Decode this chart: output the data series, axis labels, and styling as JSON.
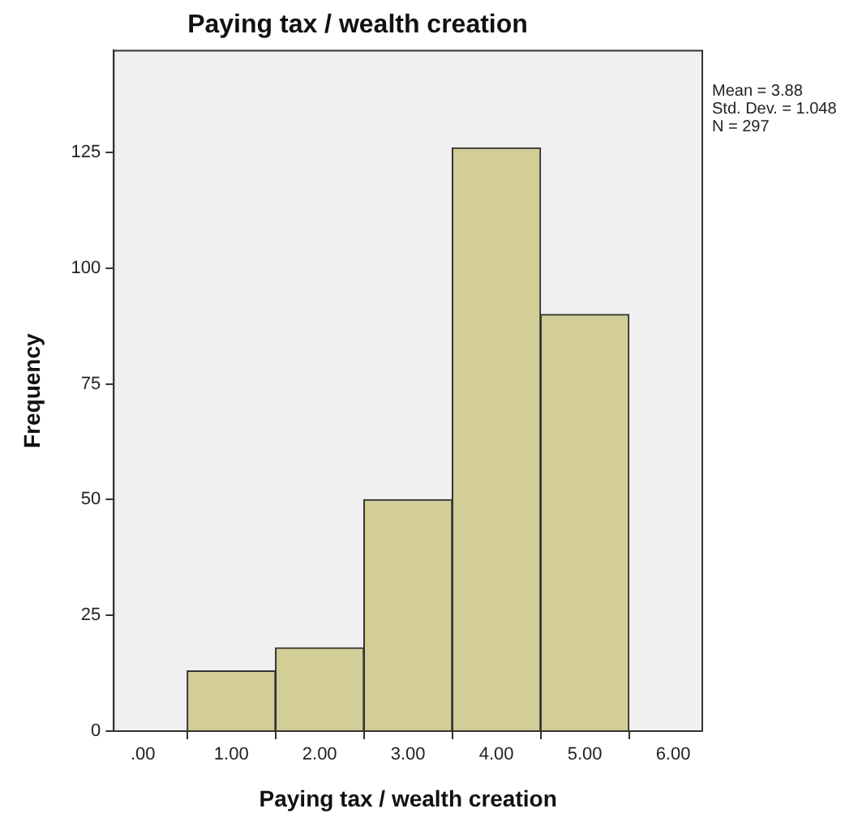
{
  "chart_data": {
    "type": "histogram",
    "title": "Paying tax / wealth creation",
    "xlabel": "Paying tax / wealth creation",
    "ylabel": "Frequency",
    "bins": [
      0.5,
      1.5,
      2.5,
      3.5,
      4.5,
      5.5
    ],
    "values": [
      13,
      18,
      50,
      126,
      90
    ],
    "color": "#d3cd98",
    "xlim": [
      -0.33,
      6.33
    ],
    "xticks": [
      {
        "value": 0,
        "label": ".00"
      },
      {
        "value": 1,
        "label": "1.00"
      },
      {
        "value": 2,
        "label": "2.00"
      },
      {
        "value": 3,
        "label": "3.00"
      },
      {
        "value": 4,
        "label": "4.00"
      },
      {
        "value": 5,
        "label": "5.00"
      },
      {
        "value": 6,
        "label": "6.00"
      }
    ],
    "ylim": [
      0,
      147
    ],
    "yticks": [
      0,
      25,
      50,
      75,
      100,
      125
    ],
    "legend": false,
    "annotations": [
      "Mean = 3.88",
      "Std. Dev. = 1.048",
      "N = 297"
    ]
  }
}
